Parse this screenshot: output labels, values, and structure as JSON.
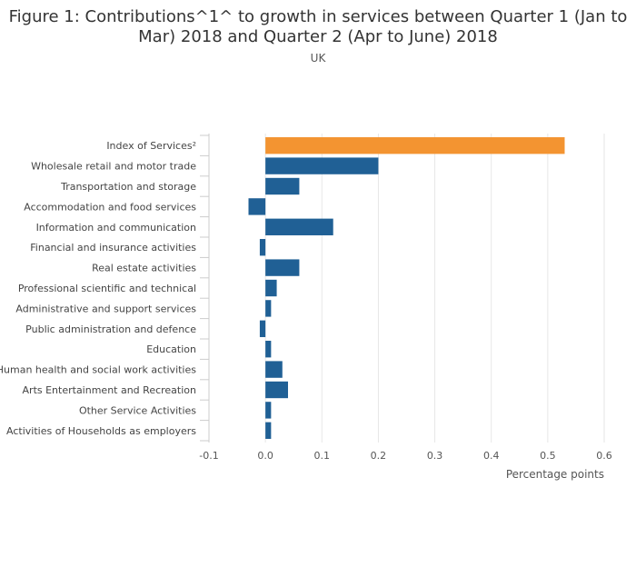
{
  "chart": {
    "title": "Figure 1: Contributions^1^ to growth in services between Quarter 1 (Jan to Mar) 2018 and Quarter 2 (Apr to June) 2018",
    "subtitle": "UK"
  },
  "colors": {
    "highlight": "#f39431",
    "bar": "#206095",
    "grid": "#e6e6e6",
    "axis": "#cccccc"
  },
  "chart_data": {
    "type": "bar",
    "orientation": "horizontal",
    "title": "Figure 1: Contributions^1^ to growth in services between Quarter 1 (Jan to Mar) 2018 and Quarter 2 (Apr to June) 2018",
    "subtitle": "UK",
    "xlabel": "Percentage points",
    "ylabel": "",
    "xlim": [
      -0.1,
      0.6
    ],
    "xticks": [
      -0.1,
      0.0,
      0.1,
      0.2,
      0.3,
      0.4,
      0.5,
      0.6
    ],
    "xtick_labels": [
      "-0.1",
      "0.0",
      "0.1",
      "0.2",
      "0.3",
      "0.4",
      "0.5",
      "0.6"
    ],
    "grid": true,
    "categories": [
      "Index of Services²",
      "Wholesale retail and motor trade",
      "Transportation and storage",
      "Accommodation and food services",
      "Information and communication",
      "Financial and insurance activities",
      "Real estate activities",
      "Professional scientific and technical",
      "Administrative and support services",
      "Public administration and defence",
      "Education",
      "Human health and social work activities",
      "Arts Entertainment and Recreation",
      "Other Service Activities",
      "Activities of Households as employers"
    ],
    "values": [
      0.53,
      0.2,
      0.06,
      -0.03,
      0.12,
      -0.01,
      0.06,
      0.02,
      0.01,
      -0.01,
      0.01,
      0.03,
      0.04,
      0.01,
      0.01
    ],
    "highlight_index": 0
  }
}
